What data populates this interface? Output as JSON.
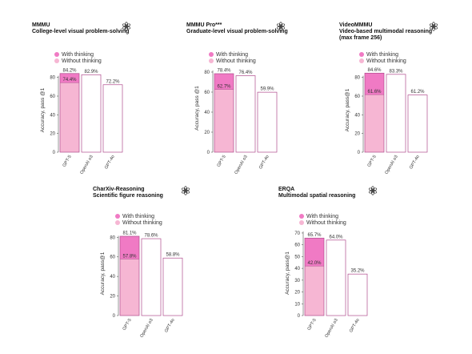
{
  "colors": {
    "with_thinking": "#f07ac4",
    "without_thinking": "#f6b6d3",
    "outline": "#b04a8d",
    "axis": "#555555"
  },
  "icon": "openai-logo-icon",
  "legend": {
    "with": "With thinking",
    "without": "Without thinking"
  },
  "chart_data": [
    {
      "type": "bar",
      "title": "MMMU",
      "subtitle": [
        "College-level visual problem-solving"
      ],
      "ylabel": "Accuracy, pass @1",
      "ylim": [
        0,
        90
      ],
      "yticks": [
        0,
        20,
        40,
        60,
        80
      ],
      "categories": [
        "GPT-5",
        "OpenAI o3",
        "GPT-4o"
      ],
      "series": [
        {
          "name": "With thinking",
          "values": [
            84.2,
            82.9,
            72.2
          ]
        },
        {
          "name": "Without thinking",
          "values": [
            74.4,
            null,
            null
          ]
        }
      ],
      "labels_total": [
        "84.2%",
        "82.9%",
        "72.2%"
      ],
      "labels_inner": [
        "74.4%",
        null,
        null
      ]
    },
    {
      "type": "bar",
      "title": "MMMU Pro***",
      "subtitle": [
        "Graduate-level visual problem-solving"
      ],
      "ylabel": "Accuracy, pass @1",
      "ylim": [
        0,
        88
      ],
      "yticks": [
        0,
        20,
        40,
        60,
        80
      ],
      "categories": [
        "GPT-5",
        "OpenAI o3",
        "GPT-4o"
      ],
      "series": [
        {
          "name": "With thinking",
          "values": [
            78.4,
            76.4,
            59.9
          ]
        },
        {
          "name": "Without thinking",
          "values": [
            62.7,
            null,
            null
          ]
        }
      ],
      "labels_total": [
        "78.4%",
        "76.4%",
        "59.9%"
      ],
      "labels_inner": [
        "62.7%",
        null,
        null
      ]
    },
    {
      "type": "bar",
      "title": "VideoMMMU",
      "subtitle": [
        "Video-based multimodal reasoning",
        "(max frame 256)"
      ],
      "ylabel": "Accuracy, pass@1",
      "ylim": [
        0,
        90
      ],
      "yticks": [
        0,
        20,
        40,
        60,
        80
      ],
      "categories": [
        "GPT-5",
        "OpenAI o3",
        "GPT-4o"
      ],
      "series": [
        {
          "name": "With thinking",
          "values": [
            84.6,
            83.3,
            61.2
          ]
        },
        {
          "name": "Without thinking",
          "values": [
            61.6,
            null,
            null
          ]
        }
      ],
      "labels_total": [
        "84.6%",
        "83.3%",
        "61.2%"
      ],
      "labels_inner": [
        "61.6%",
        null,
        null
      ]
    },
    {
      "type": "bar",
      "title": "CharXiv-Reasoning",
      "subtitle": [
        "Scientific figure reasoning"
      ],
      "ylabel": "Accuracy, pass@1",
      "ylim": [
        0,
        86
      ],
      "yticks": [
        0,
        20,
        40,
        60,
        80
      ],
      "categories": [
        "GPT-5",
        "OpenAI o3",
        "GPT-4o"
      ],
      "series": [
        {
          "name": "With thinking",
          "values": [
            81.1,
            78.6,
            58.8
          ]
        },
        {
          "name": "Without thinking",
          "values": [
            57.8,
            null,
            null
          ]
        }
      ],
      "labels_total": [
        "81.1%",
        "78.6%",
        "58.8%"
      ],
      "labels_inner": [
        "57.8%",
        null,
        null
      ]
    },
    {
      "type": "bar",
      "title": "ERQA",
      "subtitle": [
        "Multimodal spatial reasoning"
      ],
      "ylabel": "Accuracy, pass@1",
      "ylim": [
        0,
        72
      ],
      "yticks": [
        0,
        10,
        20,
        30,
        40,
        50,
        60,
        70
      ],
      "categories": [
        "GPT-5",
        "OpenAI o3",
        "GPT-4o"
      ],
      "series": [
        {
          "name": "With thinking",
          "values": [
            65.7,
            64.0,
            35.2
          ]
        },
        {
          "name": "Without thinking",
          "values": [
            42.0,
            null,
            null
          ]
        }
      ],
      "labels_total": [
        "65.7%",
        "64.0%",
        "35.2%"
      ],
      "labels_inner": [
        "42.0%",
        null,
        null
      ]
    }
  ]
}
